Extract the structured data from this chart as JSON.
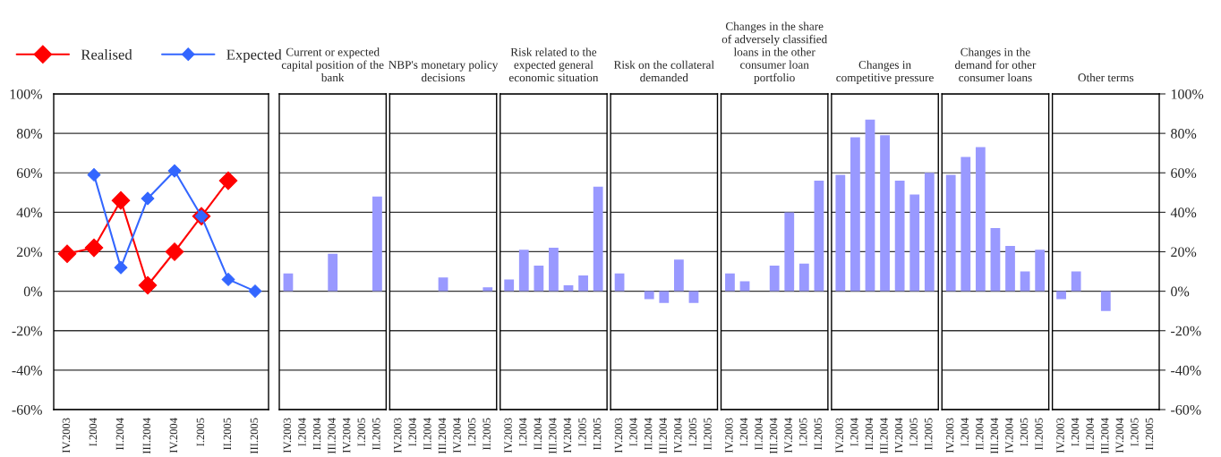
{
  "chart_data": [
    {
      "type": "line",
      "categories": [
        "IV.2003",
        "I.2004",
        "II.2004",
        "III.2004",
        "IV.2004",
        "I.2005",
        "II.2005",
        "III.2005"
      ],
      "series": [
        {
          "name": "Realised",
          "color": "#ff0000",
          "values": [
            19,
            22,
            46,
            3,
            20,
            38,
            56,
            null
          ]
        },
        {
          "name": "Expected",
          "color": "#3366ff",
          "values": [
            null,
            59,
            12,
            47,
            61,
            38,
            6,
            0
          ]
        }
      ],
      "ylim": [
        -60,
        100
      ],
      "yticks": [
        {
          "value": -60,
          "label": "-60%"
        },
        {
          "value": -40,
          "label": "-40%"
        },
        {
          "value": -20,
          "label": "-20%"
        },
        {
          "value": 0,
          "label": "0%"
        },
        {
          "value": 20,
          "label": "20%"
        },
        {
          "value": 40,
          "label": "40%"
        },
        {
          "value": 60,
          "label": "60%"
        },
        {
          "value": 80,
          "label": "80%"
        },
        {
          "value": 100,
          "label": "100%"
        }
      ],
      "grid": "y",
      "legend": "top",
      "marker": "diamond",
      "line_style": "solid"
    },
    {
      "type": "bar",
      "title": "Current or expected\ncapital position of the\nbank",
      "categories": [
        "IV.2003",
        "I.2004",
        "II.2004",
        "III.2004",
        "IV.2004",
        "I.2005",
        "II.2005"
      ],
      "values": [
        9,
        null,
        null,
        19,
        null,
        null,
        48
      ],
      "color": "#9999ff",
      "ylim": [
        -60,
        100
      ],
      "yticks": [
        -60,
        -40,
        -20,
        0,
        20,
        40,
        60,
        80,
        100
      ],
      "grid": "y",
      "tick_labels": "x"
    },
    {
      "type": "bar",
      "title": "NBP's monetary policy\ndecisions",
      "categories": [
        "IV.2003",
        "I.2004",
        "II.2004",
        "III.2004",
        "IV.2004",
        "I.2005",
        "II.2005"
      ],
      "values": [
        null,
        null,
        null,
        7,
        null,
        null,
        2
      ],
      "color": "#9999ff",
      "ylim": [
        -60,
        100
      ],
      "yticks": [
        -60,
        -40,
        -20,
        0,
        20,
        40,
        60,
        80,
        100
      ],
      "grid": "y",
      "tick_labels": "x"
    },
    {
      "type": "bar",
      "title": "Risk related to the\nexpected general\neconomic situation",
      "categories": [
        "IV.2003",
        "I.2004",
        "II.2004",
        "III.2004",
        "IV.2004",
        "I.2005",
        "II.2005"
      ],
      "values": [
        6,
        21,
        13,
        22,
        3,
        8,
        53
      ],
      "color": "#9999ff",
      "ylim": [
        -60,
        100
      ],
      "yticks": [
        -60,
        -40,
        -20,
        0,
        20,
        40,
        60,
        80,
        100
      ],
      "grid": "y",
      "tick_labels": "x"
    },
    {
      "type": "bar",
      "title": "Risk on the collateral\ndemanded",
      "categories": [
        "IV.2003",
        "I.2004",
        "II.2004",
        "III.2004",
        "IV.2004",
        "I.2005",
        "II.2005"
      ],
      "values": [
        9,
        null,
        -4,
        -6,
        16,
        -6,
        null
      ],
      "color": "#9999ff",
      "ylim": [
        -60,
        100
      ],
      "yticks": [
        -60,
        -40,
        -20,
        0,
        20,
        40,
        60,
        80,
        100
      ],
      "grid": "y",
      "tick_labels": "x"
    },
    {
      "type": "bar",
      "title": "Changes in the share\nof adversely classified\nloans in the other\nconsumer loan\nportfolio",
      "categories": [
        "IV.2003",
        "I.2004",
        "II.2004",
        "III.2004",
        "IV.2004",
        "I.2005",
        "II.2005"
      ],
      "values": [
        9,
        5,
        null,
        13,
        40,
        14,
        56
      ],
      "color": "#9999ff",
      "ylim": [
        -60,
        100
      ],
      "yticks": [
        -60,
        -40,
        -20,
        0,
        20,
        40,
        60,
        80,
        100
      ],
      "grid": "y",
      "tick_labels": "x"
    },
    {
      "type": "bar",
      "title": "Changes in\ncompetitive pressure",
      "categories": [
        "IV.2003",
        "I.2004",
        "II.2004",
        "III.2004",
        "IV.2004",
        "I.2005",
        "II.2005"
      ],
      "values": [
        59,
        78,
        87,
        79,
        56,
        49,
        60
      ],
      "color": "#9999ff",
      "ylim": [
        -60,
        100
      ],
      "yticks": [
        -60,
        -40,
        -20,
        0,
        20,
        40,
        60,
        80,
        100
      ],
      "grid": "y",
      "tick_labels": "x"
    },
    {
      "type": "bar",
      "title": "Changes in the\ndemand for other\nconsumer loans",
      "categories": [
        "IV.2003",
        "I.2004",
        "II.2004",
        "III.2004",
        "IV.2004",
        "I.2005",
        "II.2005"
      ],
      "values": [
        59,
        68,
        73,
        32,
        23,
        10,
        21
      ],
      "color": "#9999ff",
      "ylim": [
        -60,
        100
      ],
      "yticks": [
        -60,
        -40,
        -20,
        0,
        20,
        40,
        60,
        80,
        100
      ],
      "grid": "y",
      "tick_labels": "x"
    },
    {
      "type": "bar",
      "title": "Other terms",
      "categories": [
        "IV.2003",
        "I.2004",
        "II.2004",
        "III.2004",
        "IV.2004",
        "I.2005",
        "II.2005"
      ],
      "values": [
        -4,
        10,
        null,
        -10,
        null,
        null,
        null
      ],
      "color": "#9999ff",
      "ylim": [
        -60,
        100
      ],
      "yticks": [
        {
          "value": -60,
          "label": "-60%"
        },
        {
          "value": -40,
          "label": "-40%"
        },
        {
          "value": -20,
          "label": "-20%"
        },
        {
          "value": 0,
          "label": "0%"
        },
        {
          "value": 20,
          "label": "20%"
        },
        {
          "value": 40,
          "label": "40%"
        },
        {
          "value": 60,
          "label": "60%"
        },
        {
          "value": 80,
          "label": "80%"
        },
        {
          "value": 100,
          "label": "100%"
        }
      ],
      "grid": "y"
    }
  ]
}
